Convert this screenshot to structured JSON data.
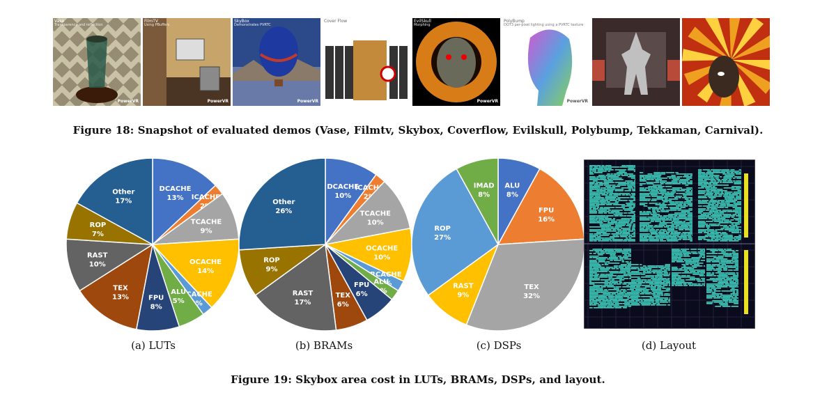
{
  "figure18": {
    "caption": "Figure 18: Snapshot of evaluated demos (Vase, Filmtv, Skybox, Coverflow, Evilskull, Polybump, Tekkaman, Carnival).",
    "thumbnails": [
      {
        "id": "vase",
        "title": "Vase",
        "subtitle": "Transparency and reflection",
        "watermark": "PowerVR",
        "colors": [
          "#6a6048",
          "#c9c2a6",
          "#2c5a4a"
        ]
      },
      {
        "id": "filmtv",
        "title": "FilmTV",
        "subtitle": "Using PBuffers",
        "watermark": "PowerVR",
        "colors": [
          "#7a5a3a",
          "#c7a46a",
          "#4a3524"
        ]
      },
      {
        "id": "skybox",
        "title": "SkyBox",
        "subtitle": "Demonstrates PVRTC",
        "watermark": "PowerVR",
        "colors": [
          "#2c4a8a",
          "#c23a2a",
          "#6a7aa8"
        ]
      },
      {
        "id": "coverflow",
        "title": "Cover Flow",
        "subtitle": "",
        "watermark": "",
        "colors": [
          "#ffffff",
          "#333333",
          "#c28a3a"
        ]
      },
      {
        "id": "evilskull",
        "title": "EvilSkull",
        "subtitle": "Morphing",
        "watermark": "PowerVR",
        "colors": [
          "#000000",
          "#f08a1a",
          "#6a6a5a"
        ]
      },
      {
        "id": "polybump",
        "title": "PolyBump",
        "subtitle": "DOT3 per-pixel lighting using a PVRTC texture",
        "watermark": "PowerVR",
        "colors": [
          "#ffffff",
          "#5aa0e0",
          "#8ad05a"
        ]
      },
      {
        "id": "tekkaman",
        "title": "",
        "subtitle": "",
        "watermark": "",
        "colors": [
          "#3a2a2a",
          "#b84a3a",
          "#c0c0c0"
        ]
      },
      {
        "id": "carnival",
        "title": "",
        "subtitle": "",
        "watermark": "",
        "colors": [
          "#f0a020",
          "#c03010",
          "#3a2a20"
        ]
      }
    ]
  },
  "figure19": {
    "caption": "Figure 19: Skybox area cost in LUTs, BRAMs, DSPs, and layout.",
    "subcaptions": [
      "(a) LUTs",
      "(b) BRAMs",
      "(c) DSPs",
      "(d) Layout"
    ]
  },
  "chart_data": [
    {
      "type": "pie",
      "title": "(a) LUTs",
      "slices": [
        {
          "label": "DCACHE",
          "value": 13,
          "display": "13%",
          "color": "#4472C4"
        },
        {
          "label": "ICACHE",
          "value": 2,
          "display": "2%",
          "color": "#ED7D31"
        },
        {
          "label": "TCACHE",
          "value": 9,
          "display": "9%",
          "color": "#A5A5A5"
        },
        {
          "label": "OCACHE",
          "value": 14,
          "display": "14%",
          "color": "#FFC000"
        },
        {
          "label": "RCACHE",
          "value": 2,
          "display": "2%",
          "color": "#5B9BD5"
        },
        {
          "label": "ALU",
          "value": 5,
          "display": "5%",
          "color": "#70AD47"
        },
        {
          "label": "FPU",
          "value": 8,
          "display": "8%",
          "color": "#264478"
        },
        {
          "label": "TEX",
          "value": 13,
          "display": "13%",
          "color": "#9E480E"
        },
        {
          "label": "RAST",
          "value": 10,
          "display": "10%",
          "color": "#636363"
        },
        {
          "label": "ROP",
          "value": 7,
          "display": "7%",
          "color": "#997300"
        },
        {
          "label": "Other",
          "value": 17,
          "display": "17%",
          "color": "#255E91"
        }
      ]
    },
    {
      "type": "pie",
      "title": "(b) BRAMs",
      "slices": [
        {
          "label": "DCACHE",
          "value": 10,
          "display": "10%",
          "color": "#4472C4"
        },
        {
          "label": "ICACHE",
          "value": 2,
          "display": "2%",
          "color": "#ED7D31"
        },
        {
          "label": "TCACHE",
          "value": 10,
          "display": "10%",
          "color": "#A5A5A5"
        },
        {
          "label": "OCACHE",
          "value": 10,
          "display": "10%",
          "color": "#FFC000"
        },
        {
          "label": "RCACHE",
          "value": 2,
          "display": "2%",
          "color": "#5B9BD5"
        },
        {
          "label": "ALU",
          "value": 2,
          "display": "2%",
          "color": "#70AD47"
        },
        {
          "label": "FPU",
          "value": 6,
          "display": "6%",
          "color": "#264478"
        },
        {
          "label": "TEX",
          "value": 6,
          "display": "6%",
          "color": "#9E480E"
        },
        {
          "label": "RAST",
          "value": 17,
          "display": "17%",
          "color": "#636363"
        },
        {
          "label": "ROP",
          "value": 9,
          "display": "9%",
          "color": "#997300"
        },
        {
          "label": "Other",
          "value": 26,
          "display": "26%",
          "color": "#255E91"
        }
      ]
    },
    {
      "type": "pie",
      "title": "(c) DSPs",
      "slices": [
        {
          "label": "ALU",
          "value": 8,
          "display": "8%",
          "color": "#4472C4"
        },
        {
          "label": "FPU",
          "value": 16,
          "display": "16%",
          "color": "#ED7D31"
        },
        {
          "label": "TEX",
          "value": 32,
          "display": "32%",
          "color": "#A5A5A5"
        },
        {
          "label": "RAST",
          "value": 9,
          "display": "9%",
          "color": "#FFC000"
        },
        {
          "label": "ROP",
          "value": 27,
          "display": "27%",
          "color": "#5B9BD5"
        },
        {
          "label": "IMAD",
          "value": 8,
          "display": "8%",
          "color": "#70AD47"
        }
      ]
    }
  ],
  "layout_colors": {
    "background": "#0a0c1e",
    "cells": "#3fd6c4",
    "ruler": "#e8e020"
  }
}
